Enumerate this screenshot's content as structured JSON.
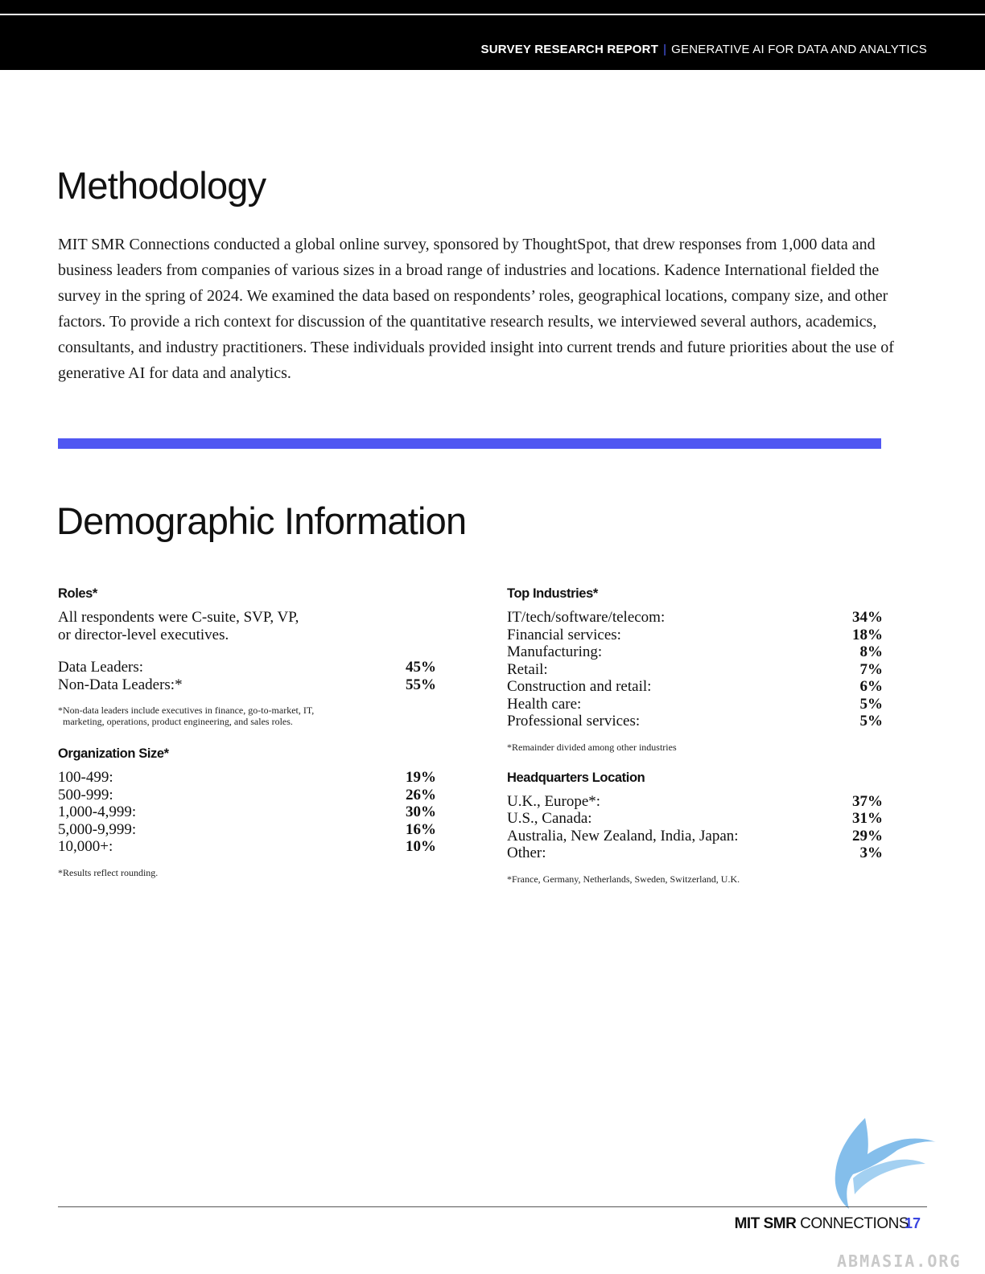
{
  "header": {
    "report_label": "SURVEY RESEARCH REPORT",
    "separator": "|",
    "report_topic": "GENERATIVE AI FOR DATA AND ANALYTICS"
  },
  "methodology": {
    "title": "Methodology",
    "body": "MIT SMR Connections conducted a global online survey, sponsored by ThoughtSpot, that drew responses from 1,000 data and business leaders from companies of various sizes in a broad range of industries and locations. Kadence International fielded the survey in the spring of 2024. We examined the data based on respondents’ roles, geographical locations, company size, and other factors. To provide a rich context for discussion of the quantitative research results, we interviewed several authors, academics, consultants, and industry practitioners. These individuals provided insight into current trends and future priorities about the use of generative AI for data and analytics."
  },
  "demographic": {
    "title": "Demographic Information",
    "roles": {
      "heading": "Roles*",
      "intro_line1": "All respondents were C-suite, SVP, VP,",
      "intro_line2": "or director-level executives.",
      "rows": [
        {
          "label": "Data Leaders:",
          "value": "45%"
        },
        {
          "label": "Non-Data Leaders:*",
          "value": "55%"
        }
      ],
      "note_line1": "*Non-data leaders include executives in finance, go-to-market, IT,",
      "note_line2": "marketing, operations, product engineering, and sales roles."
    },
    "org_size": {
      "heading": "Organization Size*",
      "rows": [
        {
          "label": "100-499:",
          "value": "19%"
        },
        {
          "label": "500-999:",
          "value": "26%"
        },
        {
          "label": "1,000-4,999:",
          "value": "30%"
        },
        {
          "label": "5,000-9,999:",
          "value": "16%"
        },
        {
          "label": "10,000+:",
          "value": "10%"
        }
      ],
      "note": "*Results reflect rounding."
    },
    "industries": {
      "heading": "Top Industries*",
      "rows": [
        {
          "label": "IT/tech/software/telecom:",
          "value": "34%"
        },
        {
          "label": "Financial services:",
          "value": "18%"
        },
        {
          "label": "Manufacturing:",
          "value": "8%"
        },
        {
          "label": "Retail:",
          "value": "7%"
        },
        {
          "label": "Construction and retail:",
          "value": "6%"
        },
        {
          "label": "Health care:",
          "value": "5%"
        },
        {
          "label": "Professional services:",
          "value": "5%"
        }
      ],
      "note": "*Remainder divided among other industries"
    },
    "hq": {
      "heading": "Headquarters Location",
      "rows": [
        {
          "label": "U.K., Europe*:",
          "value": "37%"
        },
        {
          "label": "U.S., Canada:",
          "value": "31%"
        },
        {
          "label": "Australia, New Zealand, India, Japan:",
          "value": "29%"
        },
        {
          "label": "Other:",
          "value": "3%"
        }
      ],
      "note": "*France, Germany, Netherlands, Sweden, Switzerland, U.K."
    }
  },
  "footer": {
    "brand_bold": "MIT SMR",
    "brand_regular": "CONNECTIONS",
    "page_number": "17",
    "watermark": "ABMASIA.ORG"
  },
  "colors": {
    "accent": "#5057f2",
    "header_bg": "#000000",
    "page_number": "#3a45e0"
  }
}
